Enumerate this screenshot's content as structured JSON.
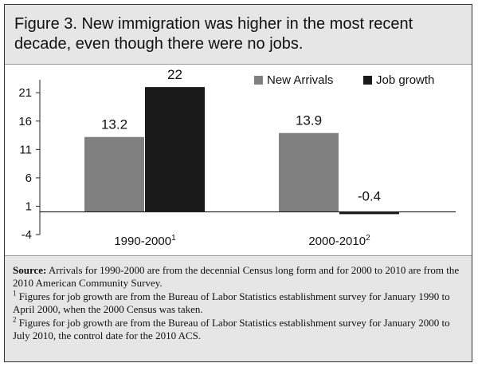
{
  "title": "Figure 3. New immigration was higher in the most recent decade, even though there were no jobs.",
  "chart_data": {
    "type": "bar",
    "categories": [
      "1990-2000",
      "2000-2010"
    ],
    "category_sups": [
      "1",
      "2"
    ],
    "series": [
      {
        "name": "New Arrivals",
        "values": [
          13.2,
          13.9
        ],
        "color": "#808080"
      },
      {
        "name": "Job growth",
        "values": [
          22,
          -0.4
        ],
        "color": "#1a1a1a"
      }
    ],
    "data_labels": [
      [
        "13.2",
        "13.9"
      ],
      [
        "22",
        "-0.4"
      ]
    ],
    "yticks": [
      21,
      16,
      11,
      6,
      1,
      -4
    ],
    "ylim": [
      -4,
      23
    ],
    "legend_position": "top-right",
    "grid": false
  },
  "source": {
    "label": "Source:",
    "text": "Arrivals for 1990-2000 are from the decennial Census long form and for 2000 to 2010 are from the 2010 American Community Survey."
  },
  "footnotes": [
    {
      "mark": "1",
      "text": "Figures for job growth are from the Bureau of Labor Statistics establishment survey for January 1990 to April 2000, when the 2000 Census was taken."
    },
    {
      "mark": "2",
      "text": "Figures for job growth are from the Bureau of Labor Statistics establishment survey for January 2000 to July 2010, the control date for the 2010 ACS."
    }
  ]
}
